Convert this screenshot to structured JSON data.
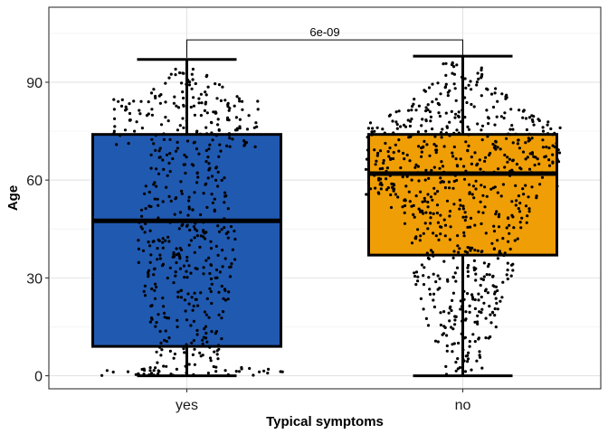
{
  "chart_data": {
    "type": "box",
    "xlabel": "Typical symptoms",
    "ylabel": "Age",
    "categories": [
      "yes",
      "no"
    ],
    "ylim": [
      -4,
      113
    ],
    "yticks": [
      0,
      30,
      60,
      90
    ],
    "grid": true,
    "boxes": [
      {
        "category": "yes",
        "color": "#2059b0",
        "whisker_low": 0,
        "q1": 9,
        "median": 47.5,
        "q3": 74,
        "whisker_high": 97
      },
      {
        "category": "no",
        "color": "#f09e06",
        "whisker_low": 0,
        "q1": 37,
        "median": 62,
        "q3": 74,
        "whisker_high": 98
      }
    ],
    "annotation": {
      "text": "6e-09",
      "between": [
        "yes",
        "no"
      ],
      "y": 103
    }
  }
}
